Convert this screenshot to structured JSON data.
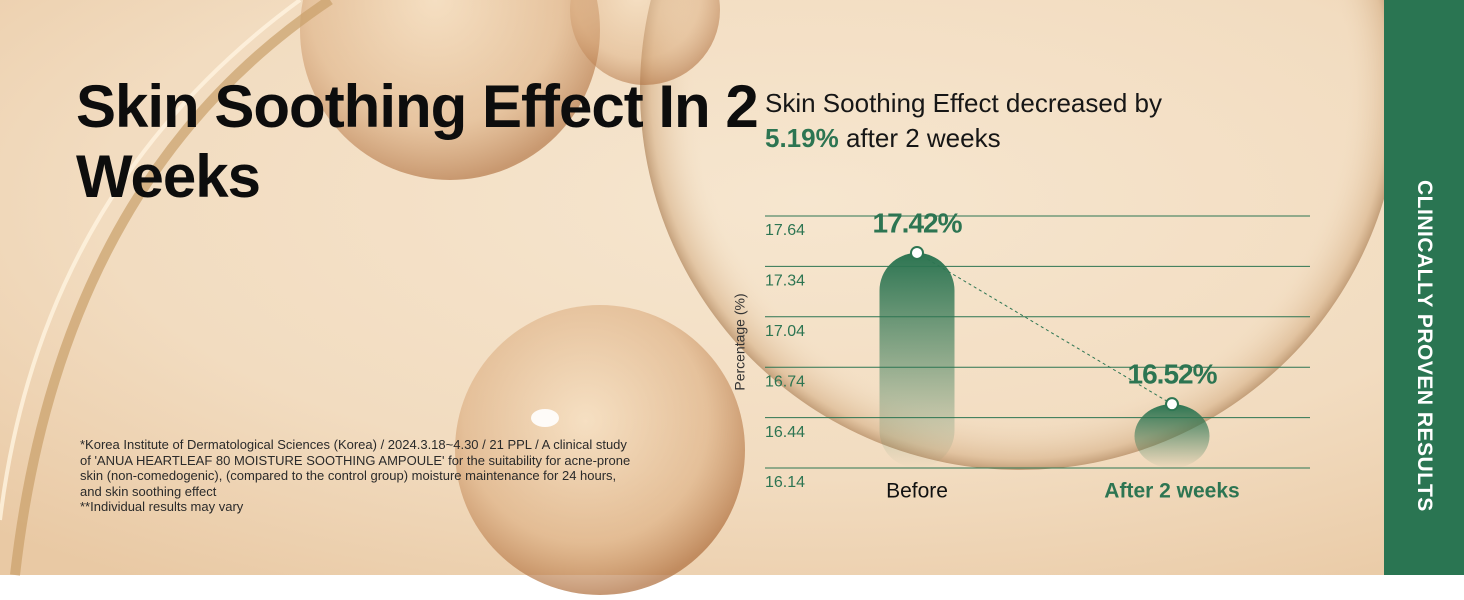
{
  "title": "Skin Soothing Effect In 2 Weeks",
  "side_banner": "CLINICALLY PROVEN RESULTS",
  "footnote": [
    "*Korea Institute of Dermatological Sciences (Korea) / 2024.3.18~4.30 / 21 PPL / A clinical study",
    "of 'ANUA HEARTLEAF 80 MOISTURE SOOTHING AMPOULE' for the suitability for acne-prone",
    "skin (non-comedogenic), (compared to the control group) moisture maintenance for 24 hours,",
    "and skin soothing effect",
    "**Individual results may vary"
  ],
  "chart_data": {
    "type": "bar",
    "subtitle": {
      "text": "Skin Soothing Effect decreased by",
      "highlight": "5.19%",
      "rest": "after 2 weeks"
    },
    "y_label": "Percentage (%)",
    "categories": [
      "Before",
      "After 2 weeks"
    ],
    "category_colors": [
      "#111111",
      "#2d7552"
    ],
    "values": [
      17.42,
      16.52
    ],
    "value_labels": [
      "17.42%",
      "16.52%"
    ],
    "color": "#2d7552",
    "ylim": [
      16.14,
      17.64
    ],
    "yticks": [
      17.64,
      17.34,
      17.04,
      16.74,
      16.44,
      16.14
    ],
    "grid": true
  }
}
